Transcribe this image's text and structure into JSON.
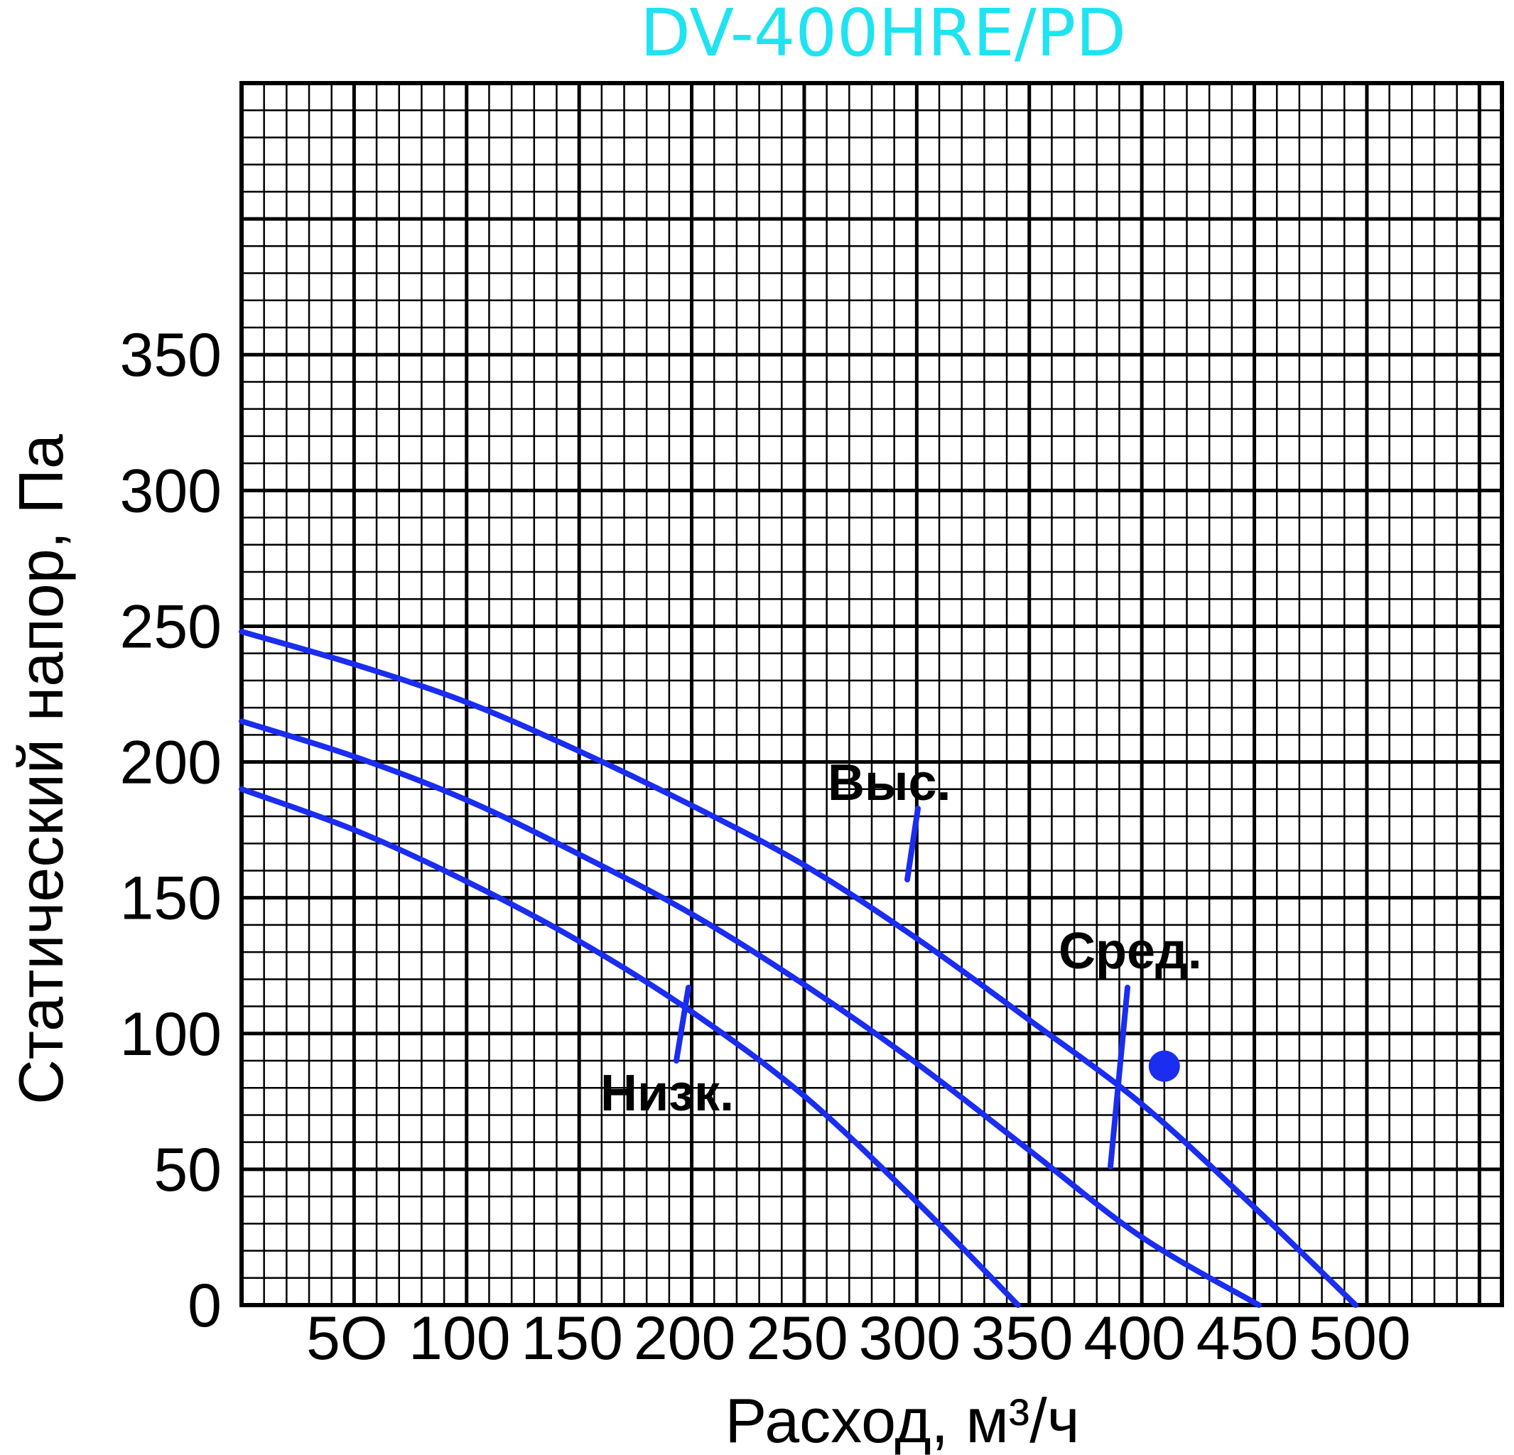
{
  "colors": {
    "title": "#1fe3f0",
    "curve": "#1a2df0",
    "grid": "#000000"
  },
  "chart_data": {
    "type": "line",
    "title": "DV-400HRE/PD",
    "xlabel": "Расход, м³/ч",
    "ylabel": "Статический напор, Па",
    "xlim": [
      0,
      560
    ],
    "ylim": [
      0,
      450
    ],
    "x_ticks": [
      "5O",
      "100",
      "150",
      "200",
      "250",
      "300",
      "350",
      "400",
      "450",
      "500"
    ],
    "y_ticks": [
      "0",
      "50",
      "100",
      "150",
      "200",
      "250",
      "300",
      "350"
    ],
    "grid": true,
    "series": [
      {
        "name": "Выс.",
        "x": [
          0,
          50,
          100,
          150,
          200,
          250,
          300,
          350,
          400,
          450,
          495
        ],
        "y": [
          248,
          236,
          222,
          204,
          184,
          162,
          135,
          105,
          74,
          36,
          0
        ]
      },
      {
        "name": "Сред.",
        "x": [
          0,
          50,
          100,
          150,
          200,
          250,
          300,
          350,
          400,
          452
        ],
        "y": [
          215,
          202,
          186,
          166,
          144,
          118,
          89,
          57,
          25,
          0
        ]
      },
      {
        "name": "Низк.",
        "x": [
          0,
          50,
          100,
          150,
          200,
          250,
          300,
          345
        ],
        "y": [
          190,
          175,
          156,
          134,
          108,
          77,
          38,
          0
        ]
      }
    ],
    "marker": {
      "x": 410,
      "y": 88
    }
  }
}
